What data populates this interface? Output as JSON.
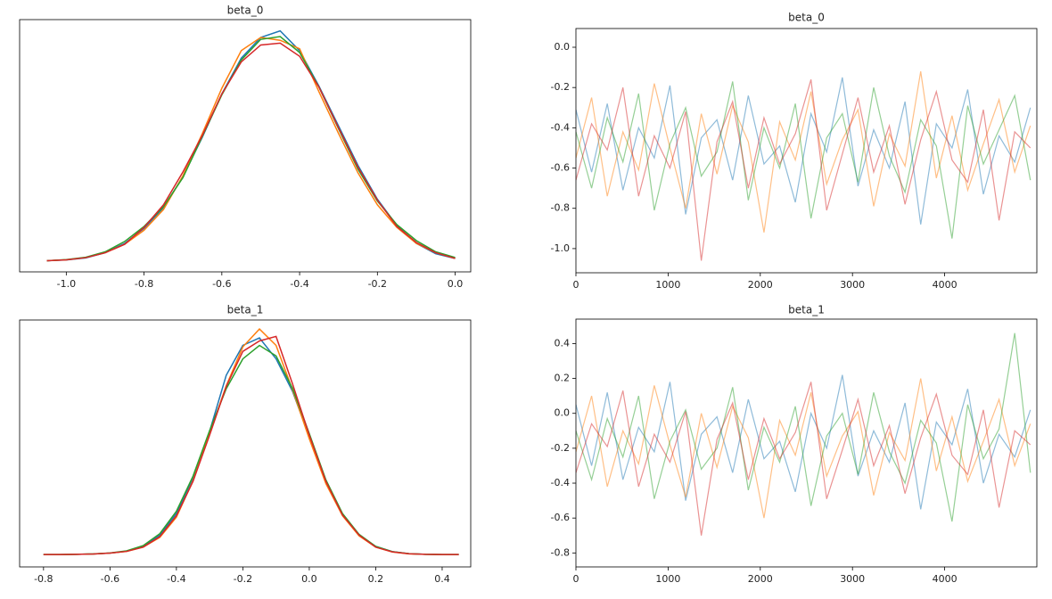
{
  "chart_data": [
    {
      "type": "line",
      "title": "beta_0",
      "x": [
        -1.05,
        -1.0,
        -0.95,
        -0.9,
        -0.85,
        -0.8,
        -0.75,
        -0.7,
        -0.65,
        -0.6,
        -0.55,
        -0.5,
        -0.45,
        -0.4,
        -0.35,
        -0.3,
        -0.25,
        -0.2,
        -0.15,
        -0.1,
        -0.05,
        0.0
      ],
      "series": [
        {
          "color": "#1f77b4",
          "values": [
            0.005,
            0.014,
            0.035,
            0.09,
            0.19,
            0.35,
            0.57,
            0.9,
            1.32,
            1.78,
            2.16,
            2.38,
            2.45,
            2.24,
            1.86,
            1.44,
            1.02,
            0.66,
            0.38,
            0.19,
            0.08,
            0.03
          ]
        },
        {
          "color": "#ff7f0e",
          "values": [
            0.006,
            0.015,
            0.04,
            0.09,
            0.18,
            0.33,
            0.55,
            0.91,
            1.36,
            1.84,
            2.24,
            2.38,
            2.35,
            2.26,
            1.8,
            1.36,
            0.94,
            0.6,
            0.36,
            0.19,
            0.09,
            0.03
          ]
        },
        {
          "color": "#2ca02c",
          "values": [
            0.006,
            0.017,
            0.042,
            0.1,
            0.21,
            0.37,
            0.58,
            0.89,
            1.33,
            1.77,
            2.14,
            2.36,
            2.39,
            2.22,
            1.85,
            1.41,
            0.98,
            0.64,
            0.39,
            0.22,
            0.1,
            0.04
          ]
        },
        {
          "color": "#d62728",
          "values": [
            0.005,
            0.015,
            0.038,
            0.09,
            0.18,
            0.36,
            0.6,
            0.95,
            1.34,
            1.78,
            2.12,
            2.3,
            2.32,
            2.18,
            1.85,
            1.42,
            1.0,
            0.65,
            0.37,
            0.2,
            0.09,
            0.03
          ]
        }
      ],
      "xlim": [
        -1.12,
        0.04
      ],
      "ylim": [
        -0.113,
        2.57
      ],
      "xticks": [
        {
          "value": -1.0,
          "label": "-1.0"
        },
        -0.8,
        -0.6,
        -0.4,
        -0.2,
        {
          "value": 0,
          "label": "0.0"
        }
      ]
    },
    {
      "type": "line",
      "title": "beta_0",
      "x": [
        0,
        170,
        340,
        510,
        680,
        850,
        1020,
        1190,
        1360,
        1530,
        1700,
        1870,
        2040,
        2210,
        2380,
        2550,
        2720,
        2890,
        3060,
        3230,
        3400,
        3570,
        3740,
        3910,
        4080,
        4250,
        4420,
        4590,
        4760,
        4930
      ],
      "series": [
        {
          "color": "#1f77b4",
          "values": [
            -0.31,
            -0.62,
            -0.28,
            -0.71,
            -0.4,
            -0.55,
            -0.19,
            -0.83,
            -0.45,
            -0.36,
            -0.66,
            -0.24,
            -0.58,
            -0.49,
            -0.77,
            -0.33,
            -0.52,
            -0.15,
            -0.69,
            -0.41,
            -0.6,
            -0.27,
            -0.88,
            -0.38,
            -0.5,
            -0.21,
            -0.73,
            -0.44,
            -0.57,
            -0.3
          ]
        },
        {
          "color": "#ff7f0e",
          "values": [
            -0.55,
            -0.25,
            -0.74,
            -0.42,
            -0.61,
            -0.18,
            -0.5,
            -0.8,
            -0.33,
            -0.63,
            -0.29,
            -0.47,
            -0.92,
            -0.37,
            -0.56,
            -0.22,
            -0.68,
            -0.46,
            -0.31,
            -0.79,
            -0.43,
            -0.59,
            -0.12,
            -0.65,
            -0.34,
            -0.71,
            -0.48,
            -0.26,
            -0.62,
            -0.39
          ]
        },
        {
          "color": "#2ca02c",
          "values": [
            -0.42,
            -0.7,
            -0.35,
            -0.57,
            -0.23,
            -0.81,
            -0.48,
            -0.3,
            -0.64,
            -0.52,
            -0.17,
            -0.76,
            -0.4,
            -0.6,
            -0.28,
            -0.85,
            -0.45,
            -0.33,
            -0.67,
            -0.2,
            -0.54,
            -0.72,
            -0.36,
            -0.49,
            -0.95,
            -0.29,
            -0.58,
            -0.41,
            -0.24,
            -0.66
          ]
        },
        {
          "color": "#d62728",
          "values": [
            -0.66,
            -0.38,
            -0.51,
            -0.2,
            -0.74,
            -0.44,
            -0.6,
            -0.32,
            -1.06,
            -0.47,
            -0.27,
            -0.7,
            -0.35,
            -0.58,
            -0.43,
            -0.16,
            -0.81,
            -0.53,
            -0.25,
            -0.62,
            -0.39,
            -0.78,
            -0.46,
            -0.22,
            -0.56,
            -0.67,
            -0.31,
            -0.86,
            -0.42,
            -0.5
          ]
        }
      ],
      "xlim": [
        0,
        5000
      ],
      "ylim": [
        -1.12,
        0.093
      ],
      "xticks": [
        0,
        1000,
        2000,
        3000,
        4000
      ],
      "yticks": [
        {
          "value": -1.0,
          "label": "-1.0"
        },
        -0.8,
        -0.6,
        -0.4,
        -0.2,
        {
          "value": 0,
          "label": "0.0"
        }
      ]
    },
    {
      "type": "line",
      "title": "beta_1",
      "x": [
        -0.8,
        -0.75,
        -0.7,
        -0.65,
        -0.6,
        -0.55,
        -0.5,
        -0.45,
        -0.4,
        -0.35,
        -0.3,
        -0.25,
        -0.2,
        -0.15,
        -0.1,
        -0.05,
        0.0,
        0.05,
        0.1,
        0.15,
        0.2,
        0.25,
        0.3,
        0.35,
        0.4,
        0.45
      ],
      "series": [
        {
          "color": "#1f77b4",
          "values": [
            0.0,
            0.001,
            0.003,
            0.008,
            0.02,
            0.045,
            0.11,
            0.26,
            0.55,
            1.02,
            1.65,
            2.4,
            2.8,
            2.9,
            2.62,
            2.18,
            1.58,
            0.99,
            0.54,
            0.26,
            0.11,
            0.04,
            0.012,
            0.004,
            0.001,
            0.0
          ]
        },
        {
          "color": "#ff7f0e",
          "values": [
            0.0,
            0.001,
            0.003,
            0.008,
            0.02,
            0.042,
            0.1,
            0.23,
            0.5,
            0.99,
            1.62,
            2.26,
            2.78,
            3.02,
            2.8,
            2.2,
            1.55,
            0.95,
            0.52,
            0.25,
            0.1,
            0.035,
            0.01,
            0.003,
            0.001,
            0.0
          ]
        },
        {
          "color": "#2ca02c",
          "values": [
            0.0,
            0.001,
            0.003,
            0.009,
            0.022,
            0.05,
            0.12,
            0.28,
            0.58,
            1.05,
            1.66,
            2.22,
            2.62,
            2.8,
            2.66,
            2.22,
            1.62,
            1.0,
            0.55,
            0.27,
            0.11,
            0.04,
            0.012,
            0.004,
            0.001,
            0.0
          ]
        },
        {
          "color": "#d62728",
          "values": [
            0.0,
            0.001,
            0.003,
            0.008,
            0.02,
            0.043,
            0.1,
            0.24,
            0.52,
            0.98,
            1.6,
            2.25,
            2.72,
            2.86,
            2.92,
            2.28,
            1.6,
            0.98,
            0.53,
            0.26,
            0.1,
            0.036,
            0.011,
            0.003,
            0.001,
            0.0
          ]
        }
      ],
      "xlim": [
        -0.872,
        0.486
      ],
      "ylim": [
        -0.165,
        3.14
      ],
      "xticks": [
        -0.8,
        -0.6,
        -0.4,
        -0.2,
        {
          "value": 0,
          "label": "0.0"
        },
        0.2,
        0.4
      ]
    },
    {
      "type": "line",
      "title": "beta_1",
      "x": [
        0,
        170,
        340,
        510,
        680,
        850,
        1020,
        1190,
        1360,
        1530,
        1700,
        1870,
        2040,
        2210,
        2380,
        2550,
        2720,
        2890,
        3060,
        3230,
        3400,
        3570,
        3740,
        3910,
        4080,
        4250,
        4420,
        4590,
        4760,
        4930
      ],
      "series": [
        {
          "color": "#1f77b4",
          "values": [
            0.05,
            -0.3,
            0.12,
            -0.38,
            -0.08,
            -0.22,
            0.18,
            -0.5,
            -0.12,
            -0.02,
            -0.34,
            0.08,
            -0.26,
            -0.16,
            -0.45,
            0.0,
            -0.2,
            0.22,
            -0.36,
            -0.1,
            -0.28,
            0.06,
            -0.55,
            -0.05,
            -0.18,
            0.14,
            -0.4,
            -0.12,
            -0.25,
            0.02
          ]
        },
        {
          "color": "#ff7f0e",
          "values": [
            -0.22,
            0.1,
            -0.42,
            -0.1,
            -0.29,
            0.16,
            -0.18,
            -0.48,
            0.0,
            -0.31,
            0.04,
            -0.14,
            -0.6,
            -0.04,
            -0.24,
            0.12,
            -0.36,
            -0.13,
            0.01,
            -0.47,
            -0.11,
            -0.27,
            0.2,
            -0.33,
            -0.02,
            -0.39,
            -0.16,
            0.08,
            -0.3,
            -0.06
          ]
        },
        {
          "color": "#2ca02c",
          "values": [
            -0.1,
            -0.38,
            -0.03,
            -0.25,
            0.1,
            -0.49,
            -0.16,
            0.02,
            -0.32,
            -0.2,
            0.15,
            -0.44,
            -0.08,
            -0.28,
            0.04,
            -0.53,
            -0.13,
            0.0,
            -0.35,
            0.12,
            -0.22,
            -0.4,
            -0.04,
            -0.17,
            -0.62,
            0.05,
            -0.26,
            -0.09,
            0.46,
            -0.34
          ]
        },
        {
          "color": "#d62728",
          "values": [
            -0.34,
            -0.06,
            -0.19,
            0.13,
            -0.42,
            -0.12,
            -0.28,
            0.01,
            -0.7,
            -0.15,
            0.06,
            -0.38,
            -0.03,
            -0.26,
            -0.11,
            0.18,
            -0.49,
            -0.21,
            0.08,
            -0.3,
            -0.07,
            -0.46,
            -0.14,
            0.11,
            -0.24,
            -0.35,
            0.02,
            -0.54,
            -0.1,
            -0.18
          ]
        }
      ],
      "xlim": [
        0,
        5000
      ],
      "ylim": [
        -0.88,
        0.54
      ],
      "xticks": [
        0,
        1000,
        2000,
        3000,
        4000
      ],
      "yticks": [
        -0.8,
        -0.6,
        -0.4,
        -0.2,
        {
          "value": 0,
          "label": "0.0"
        },
        0.2,
        0.4
      ]
    }
  ]
}
